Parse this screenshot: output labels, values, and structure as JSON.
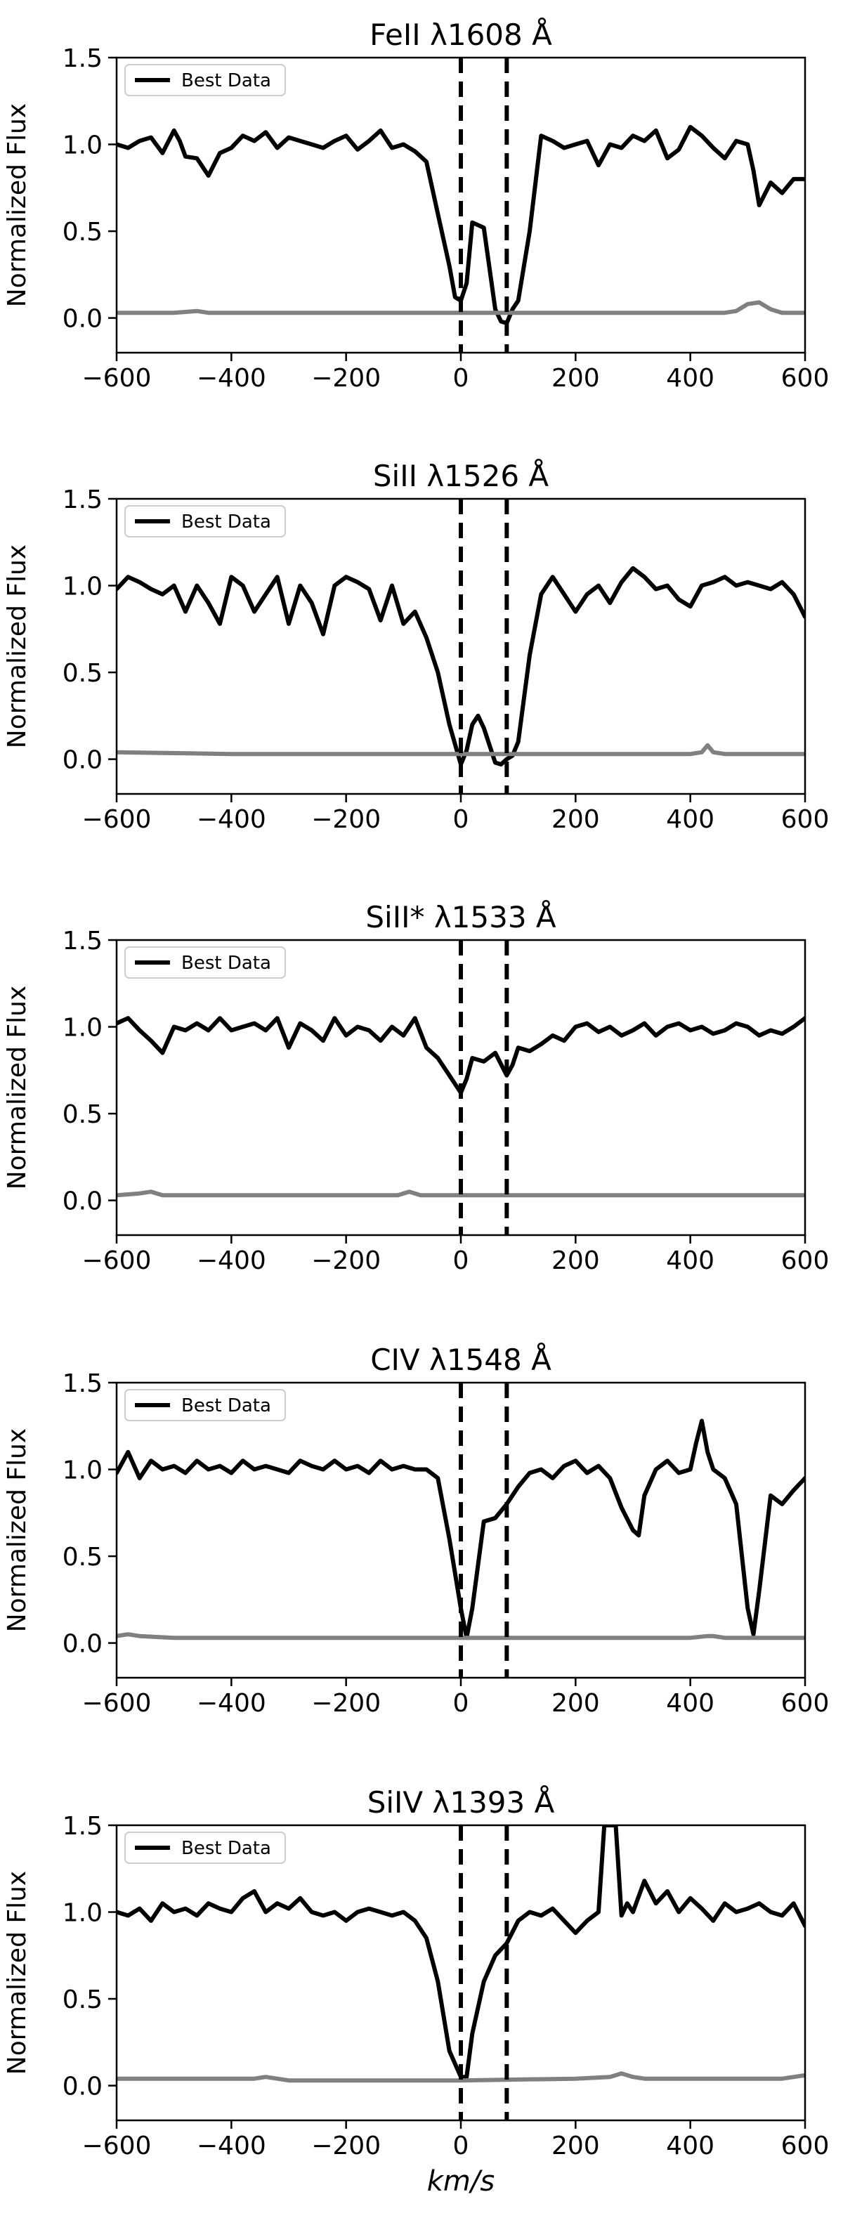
{
  "figure": {
    "xlabel": "km/s",
    "legend_label": "Best Data",
    "legend_position": "top-left",
    "ylabel": "Normalized Flux",
    "grid": false,
    "colors": {
      "data": "#000000",
      "error": "#808080",
      "markers": "#000000"
    }
  },
  "chart_data": [
    {
      "type": "line",
      "title": "FeII λ1608 Å",
      "ylabel": "Normalized Flux",
      "xlabel": "",
      "xlim": [
        -600,
        600
      ],
      "ylim": [
        -0.2,
        1.5
      ],
      "xticks": [
        -600,
        -400,
        -200,
        0,
        200,
        400,
        600
      ],
      "xtick_labels": [
        "−600",
        "−400",
        "−200",
        "0",
        "200",
        "400",
        "600"
      ],
      "yticks": [
        0.0,
        0.5,
        1.0,
        1.5
      ],
      "ytick_labels": [
        "0.0",
        "0.5",
        "1.0",
        "1.5"
      ],
      "vlines": [
        0,
        80
      ],
      "series": [
        {
          "name": "Best Data",
          "style": "black-solid",
          "x": [
            -600,
            -580,
            -560,
            -540,
            -520,
            -500,
            -490,
            -480,
            -460,
            -440,
            -420,
            -400,
            -380,
            -360,
            -340,
            -320,
            -300,
            -280,
            -260,
            -240,
            -220,
            -200,
            -180,
            -160,
            -140,
            -120,
            -100,
            -80,
            -60,
            -40,
            -20,
            -10,
            0,
            10,
            20,
            40,
            60,
            70,
            80,
            90,
            100,
            120,
            140,
            160,
            180,
            200,
            220,
            240,
            260,
            280,
            300,
            320,
            340,
            360,
            380,
            400,
            420,
            440,
            460,
            480,
            500,
            510,
            520,
            540,
            560,
            580,
            600
          ],
          "y": [
            1.0,
            0.98,
            1.02,
            1.04,
            0.95,
            1.08,
            1.02,
            0.93,
            0.92,
            0.82,
            0.95,
            0.98,
            1.05,
            1.02,
            1.07,
            0.98,
            1.04,
            1.02,
            1.0,
            0.98,
            1.02,
            1.05,
            0.97,
            1.02,
            1.08,
            0.98,
            1.0,
            0.96,
            0.9,
            0.6,
            0.3,
            0.12,
            0.1,
            0.2,
            0.55,
            0.52,
            0.05,
            -0.02,
            -0.03,
            0.05,
            0.1,
            0.5,
            1.05,
            1.02,
            0.98,
            1.0,
            1.02,
            0.88,
            1.0,
            0.98,
            1.05,
            1.02,
            1.08,
            0.92,
            0.97,
            1.1,
            1.05,
            0.98,
            0.92,
            1.02,
            1.0,
            0.85,
            0.65,
            0.78,
            0.72,
            0.8,
            0.8
          ]
        },
        {
          "name": "",
          "style": "gray-error",
          "x": [
            -600,
            -500,
            -460,
            -440,
            -400,
            -300,
            -200,
            -100,
            0,
            100,
            200,
            300,
            400,
            460,
            480,
            500,
            520,
            540,
            560,
            600
          ],
          "y": [
            0.03,
            0.03,
            0.04,
            0.03,
            0.03,
            0.03,
            0.03,
            0.03,
            0.03,
            0.03,
            0.03,
            0.03,
            0.03,
            0.03,
            0.04,
            0.08,
            0.09,
            0.05,
            0.03,
            0.03
          ]
        }
      ]
    },
    {
      "type": "line",
      "title": "SiII λ1526 Å",
      "ylabel": "Normalized Flux",
      "xlabel": "",
      "xlim": [
        -600,
        600
      ],
      "ylim": [
        -0.2,
        1.5
      ],
      "xticks": [
        -600,
        -400,
        -200,
        0,
        200,
        400,
        600
      ],
      "xtick_labels": [
        "−600",
        "−400",
        "−200",
        "0",
        "200",
        "400",
        "600"
      ],
      "yticks": [
        0.0,
        0.5,
        1.0,
        1.5
      ],
      "ytick_labels": [
        "0.0",
        "0.5",
        "1.0",
        "1.5"
      ],
      "vlines": [
        0,
        80
      ],
      "series": [
        {
          "name": "Best Data",
          "style": "black-solid",
          "x": [
            -600,
            -580,
            -560,
            -540,
            -520,
            -500,
            -480,
            -460,
            -440,
            -420,
            -400,
            -380,
            -360,
            -340,
            -320,
            -300,
            -280,
            -260,
            -240,
            -220,
            -200,
            -180,
            -160,
            -140,
            -120,
            -100,
            -80,
            -60,
            -40,
            -20,
            0,
            10,
            20,
            30,
            40,
            60,
            70,
            80,
            90,
            100,
            120,
            140,
            160,
            180,
            200,
            220,
            240,
            260,
            280,
            300,
            320,
            340,
            360,
            380,
            400,
            420,
            440,
            460,
            480,
            500,
            520,
            540,
            560,
            580,
            600
          ],
          "y": [
            0.98,
            1.05,
            1.02,
            0.98,
            0.95,
            1.0,
            0.85,
            1.0,
            0.9,
            0.78,
            1.05,
            1.0,
            0.85,
            0.95,
            1.05,
            0.78,
            1.0,
            0.9,
            0.72,
            1.0,
            1.05,
            1.02,
            0.98,
            0.8,
            1.0,
            0.78,
            0.85,
            0.7,
            0.5,
            0.2,
            -0.03,
            0.05,
            0.2,
            0.25,
            0.18,
            -0.02,
            -0.03,
            0.0,
            0.02,
            0.1,
            0.6,
            0.95,
            1.05,
            0.95,
            0.85,
            0.95,
            1.0,
            0.9,
            1.02,
            1.1,
            1.05,
            0.98,
            1.0,
            0.92,
            0.88,
            1.0,
            1.02,
            1.05,
            1.0,
            1.02,
            1.0,
            0.98,
            1.02,
            0.95,
            0.82
          ]
        },
        {
          "name": "",
          "style": "gray-error",
          "x": [
            -600,
            -400,
            -200,
            0,
            200,
            400,
            420,
            430,
            440,
            460,
            600
          ],
          "y": [
            0.04,
            0.03,
            0.03,
            0.03,
            0.03,
            0.03,
            0.04,
            0.08,
            0.04,
            0.03,
            0.03
          ]
        }
      ]
    },
    {
      "type": "line",
      "title": "SiII* λ1533 Å",
      "ylabel": "Normalized Flux",
      "xlabel": "",
      "xlim": [
        -600,
        600
      ],
      "ylim": [
        -0.2,
        1.5
      ],
      "xticks": [
        -600,
        -400,
        -200,
        0,
        200,
        400,
        600
      ],
      "xtick_labels": [
        "−600",
        "−400",
        "−200",
        "0",
        "200",
        "400",
        "600"
      ],
      "yticks": [
        0.0,
        0.5,
        1.0,
        1.5
      ],
      "ytick_labels": [
        "0.0",
        "0.5",
        "1.0",
        "1.5"
      ],
      "vlines": [
        0,
        80
      ],
      "series": [
        {
          "name": "Best Data",
          "style": "black-solid",
          "x": [
            -600,
            -580,
            -560,
            -540,
            -520,
            -500,
            -480,
            -460,
            -440,
            -420,
            -400,
            -380,
            -360,
            -340,
            -320,
            -300,
            -280,
            -260,
            -240,
            -220,
            -200,
            -180,
            -160,
            -140,
            -120,
            -100,
            -80,
            -60,
            -40,
            -20,
            0,
            10,
            20,
            40,
            60,
            80,
            90,
            100,
            120,
            140,
            160,
            180,
            200,
            220,
            240,
            260,
            280,
            300,
            320,
            340,
            360,
            380,
            400,
            420,
            440,
            460,
            480,
            500,
            520,
            540,
            560,
            580,
            600
          ],
          "y": [
            1.02,
            1.05,
            0.98,
            0.92,
            0.85,
            1.0,
            0.98,
            1.02,
            0.98,
            1.05,
            0.98,
            1.0,
            1.02,
            0.98,
            1.05,
            0.88,
            1.02,
            0.98,
            0.92,
            1.05,
            0.95,
            1.0,
            0.98,
            0.92,
            1.0,
            0.95,
            1.05,
            0.88,
            0.82,
            0.72,
            0.62,
            0.7,
            0.82,
            0.8,
            0.85,
            0.72,
            0.78,
            0.88,
            0.86,
            0.9,
            0.95,
            0.92,
            1.0,
            1.02,
            0.97,
            1.0,
            0.95,
            0.98,
            1.02,
            0.95,
            1.0,
            1.02,
            0.98,
            1.0,
            0.96,
            0.98,
            1.02,
            1.0,
            0.95,
            0.98,
            0.96,
            1.0,
            1.05
          ]
        },
        {
          "name": "",
          "style": "gray-error",
          "x": [
            -600,
            -560,
            -540,
            -520,
            -400,
            -200,
            -110,
            -90,
            -70,
            0,
            200,
            400,
            600
          ],
          "y": [
            0.03,
            0.04,
            0.05,
            0.03,
            0.03,
            0.03,
            0.03,
            0.05,
            0.03,
            0.03,
            0.03,
            0.03,
            0.03
          ]
        }
      ]
    },
    {
      "type": "line",
      "title": "CIV λ1548 Å",
      "ylabel": "Normalized Flux",
      "xlabel": "",
      "xlim": [
        -600,
        600
      ],
      "ylim": [
        -0.2,
        1.5
      ],
      "xticks": [
        -600,
        -400,
        -200,
        0,
        200,
        400,
        600
      ],
      "xtick_labels": [
        "−600",
        "−400",
        "−200",
        "0",
        "200",
        "400",
        "600"
      ],
      "yticks": [
        0.0,
        0.5,
        1.0,
        1.5
      ],
      "ytick_labels": [
        "0.0",
        "0.5",
        "1.0",
        "1.5"
      ],
      "vlines": [
        0,
        80
      ],
      "series": [
        {
          "name": "Best Data",
          "style": "black-solid",
          "x": [
            -600,
            -580,
            -560,
            -540,
            -520,
            -500,
            -480,
            -460,
            -440,
            -420,
            -400,
            -380,
            -360,
            -340,
            -320,
            -300,
            -280,
            -260,
            -240,
            -220,
            -200,
            -180,
            -160,
            -140,
            -120,
            -100,
            -80,
            -60,
            -40,
            -20,
            0,
            10,
            20,
            40,
            60,
            80,
            100,
            120,
            140,
            160,
            180,
            200,
            220,
            240,
            260,
            280,
            300,
            310,
            320,
            340,
            360,
            380,
            400,
            410,
            420,
            430,
            440,
            460,
            480,
            500,
            510,
            520,
            540,
            560,
            580,
            600
          ],
          "y": [
            0.98,
            1.1,
            0.95,
            1.05,
            1.0,
            1.02,
            0.98,
            1.05,
            1.0,
            1.02,
            0.98,
            1.05,
            1.0,
            1.02,
            1.0,
            0.98,
            1.05,
            1.02,
            1.0,
            1.05,
            1.0,
            1.02,
            0.98,
            1.05,
            1.0,
            1.02,
            1.0,
            1.0,
            0.95,
            0.6,
            0.2,
            0.03,
            0.2,
            0.7,
            0.72,
            0.8,
            0.9,
            0.98,
            1.0,
            0.95,
            1.02,
            1.05,
            0.98,
            1.02,
            0.95,
            0.78,
            0.65,
            0.62,
            0.85,
            1.0,
            1.05,
            0.98,
            1.0,
            1.15,
            1.28,
            1.1,
            1.0,
            0.95,
            0.8,
            0.2,
            0.05,
            0.3,
            0.85,
            0.8,
            0.88,
            0.95
          ]
        },
        {
          "name": "",
          "style": "gray-error",
          "x": [
            -600,
            -580,
            -560,
            -500,
            -200,
            0,
            200,
            400,
            430,
            440,
            460,
            600
          ],
          "y": [
            0.04,
            0.05,
            0.04,
            0.03,
            0.03,
            0.03,
            0.03,
            0.03,
            0.04,
            0.04,
            0.03,
            0.03
          ]
        }
      ]
    },
    {
      "type": "line",
      "title": "SiIV λ1393 Å",
      "ylabel": "Normalized Flux",
      "xlabel": "km/s",
      "xlim": [
        -600,
        600
      ],
      "ylim": [
        -0.2,
        1.5
      ],
      "xticks": [
        -600,
        -400,
        -200,
        0,
        200,
        400,
        600
      ],
      "xtick_labels": [
        "−600",
        "−400",
        "−200",
        "0",
        "200",
        "400",
        "600"
      ],
      "yticks": [
        0.0,
        0.5,
        1.0,
        1.5
      ],
      "ytick_labels": [
        "0.0",
        "0.5",
        "1.0",
        "1.5"
      ],
      "vlines": [
        0,
        80
      ],
      "series": [
        {
          "name": "Best Data",
          "style": "black-solid",
          "x": [
            -600,
            -580,
            -560,
            -540,
            -520,
            -500,
            -480,
            -460,
            -440,
            -420,
            -400,
            -380,
            -360,
            -340,
            -320,
            -300,
            -280,
            -260,
            -240,
            -220,
            -200,
            -180,
            -160,
            -140,
            -120,
            -100,
            -80,
            -60,
            -40,
            -20,
            0,
            10,
            20,
            40,
            60,
            80,
            100,
            120,
            140,
            160,
            180,
            200,
            220,
            240,
            250,
            260,
            270,
            280,
            290,
            300,
            320,
            340,
            360,
            380,
            400,
            420,
            440,
            460,
            480,
            500,
            520,
            540,
            560,
            580,
            600
          ],
          "y": [
            1.0,
            0.98,
            1.02,
            0.95,
            1.05,
            1.0,
            1.02,
            0.98,
            1.05,
            1.02,
            1.0,
            1.08,
            1.12,
            1.0,
            1.05,
            1.02,
            1.08,
            1.0,
            0.98,
            1.0,
            0.95,
            1.0,
            1.02,
            1.0,
            0.98,
            1.0,
            0.95,
            0.85,
            0.6,
            0.2,
            0.05,
            0.05,
            0.3,
            0.6,
            0.75,
            0.82,
            0.95,
            1.0,
            0.98,
            1.02,
            0.95,
            0.88,
            0.95,
            1.0,
            1.5,
            1.5,
            1.5,
            0.98,
            1.05,
            1.0,
            1.18,
            1.05,
            1.12,
            1.0,
            1.08,
            1.02,
            0.95,
            1.05,
            1.0,
            1.02,
            1.05,
            1.0,
            0.98,
            1.05,
            0.92
          ]
        },
        {
          "name": "",
          "style": "gray-error",
          "x": [
            -600,
            -360,
            -340,
            -320,
            -300,
            -200,
            0,
            200,
            260,
            280,
            300,
            320,
            400,
            560,
            600
          ],
          "y": [
            0.04,
            0.04,
            0.05,
            0.04,
            0.03,
            0.03,
            0.03,
            0.04,
            0.05,
            0.07,
            0.05,
            0.04,
            0.04,
            0.04,
            0.06
          ]
        }
      ]
    }
  ]
}
